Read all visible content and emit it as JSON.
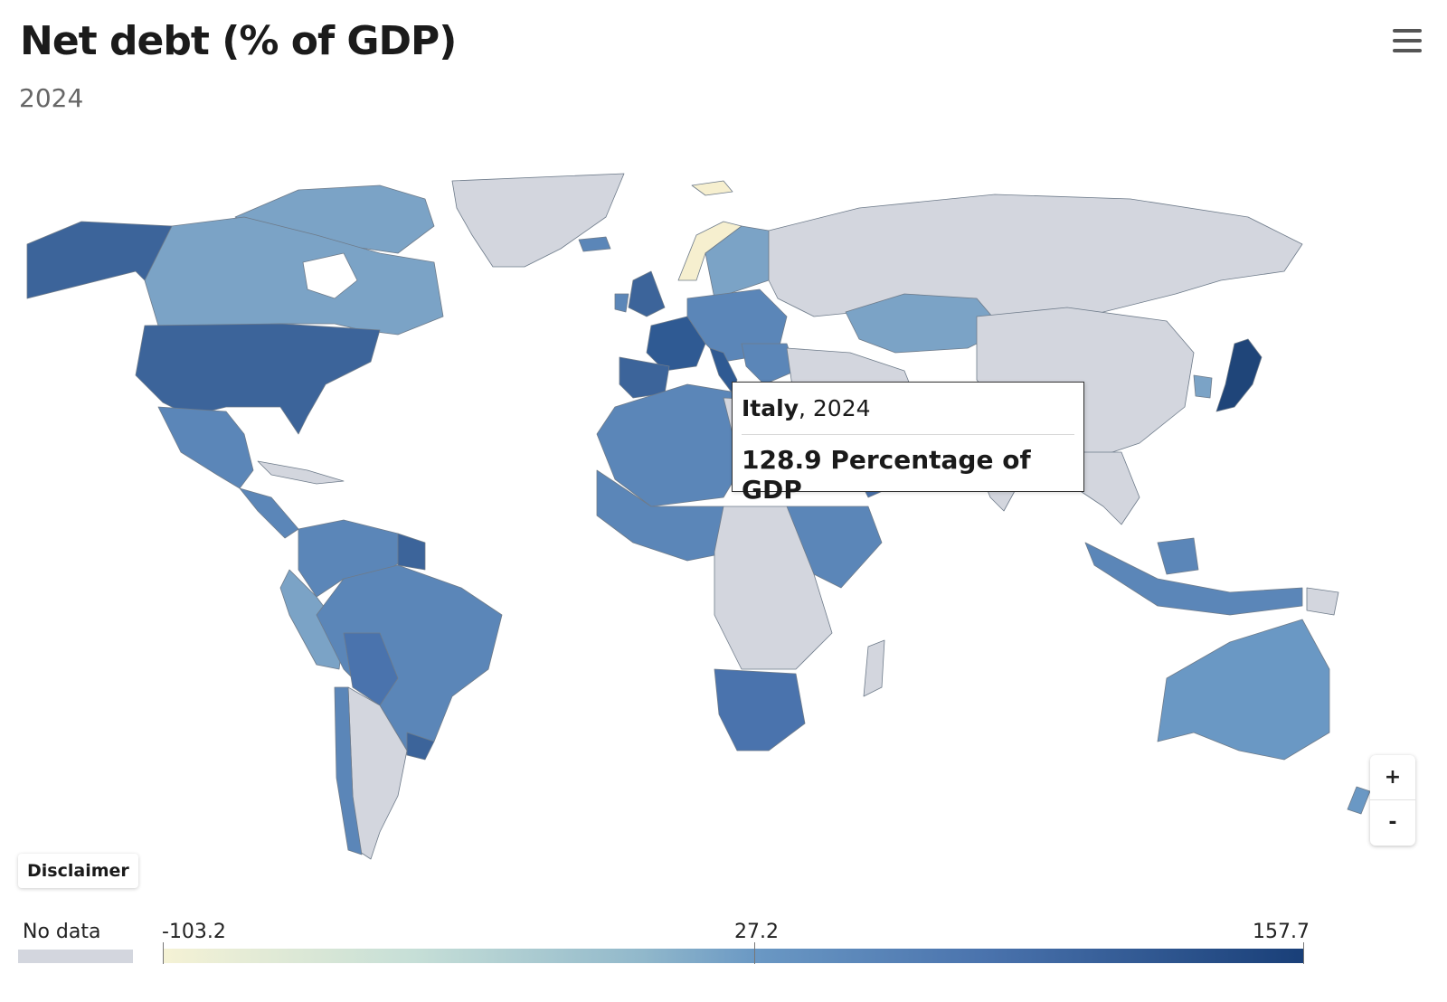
{
  "title": "Net debt (% of GDP)",
  "subtitle": "2024",
  "menu_icon": "hamburger-menu-icon",
  "tooltip": {
    "country": "Italy",
    "year": ", 2024",
    "value": "128.9 Percentage of GDP"
  },
  "zoom": {
    "in_label": "+",
    "out_label": "-"
  },
  "disclaimer_label": "Disclaimer",
  "legend": {
    "no_data_label": "No data",
    "no_data_color": "#d3d6de",
    "min_label": "-103.2",
    "mid_label": "27.2",
    "max_label": "157.7",
    "colors": [
      "#f5f2d5",
      "#c6dfd7",
      "#91b8cb",
      "#6a98c4",
      "#4a73ad",
      "#193f78"
    ]
  },
  "map_colors": {
    "no_data": "#d3d6de",
    "light": "#7ba3c6",
    "mid": "#5b86b8",
    "dark": "#3c649a",
    "darkest": "#1f4579",
    "negative": "#f6efcf"
  }
}
